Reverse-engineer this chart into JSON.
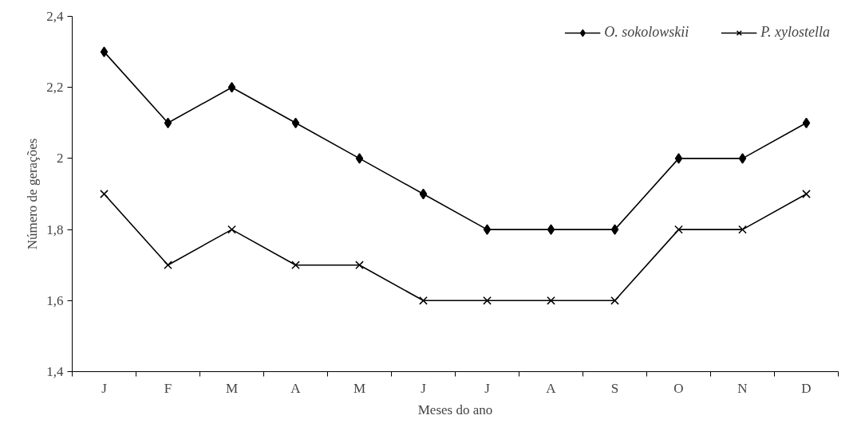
{
  "chart_data": {
    "type": "line",
    "xlabel": "Meses do ano",
    "ylabel": "Número de gerações",
    "categories": [
      "J",
      "F",
      "M",
      "A",
      "M",
      "J",
      "J",
      "A",
      "S",
      "O",
      "N",
      "D"
    ],
    "series": [
      {
        "name": "O. sokolowskii",
        "color": "#000000",
        "marker": "diamond",
        "values": [
          2.3,
          2.1,
          2.2,
          2.1,
          2.0,
          1.9,
          1.8,
          1.8,
          1.8,
          2.0,
          2.0,
          2.1
        ]
      },
      {
        "name": "P. xylostella",
        "color": "#000000",
        "marker": "cross",
        "values": [
          1.9,
          1.7,
          1.8,
          1.7,
          1.7,
          1.6,
          1.6,
          1.6,
          1.6,
          1.8,
          1.8,
          1.9
        ]
      }
    ],
    "ylim": [
      1.4,
      2.4
    ],
    "yticks": [
      {
        "value": 1.4,
        "label": "1,4"
      },
      {
        "value": 1.6,
        "label": "1,6"
      },
      {
        "value": 1.8,
        "label": "1,8"
      },
      2,
      {
        "value": 2.2,
        "label": "2,2"
      },
      {
        "value": 2.4,
        "label": "2,4"
      }
    ],
    "grid": false,
    "legend": "top right",
    "line_style": "solid"
  }
}
